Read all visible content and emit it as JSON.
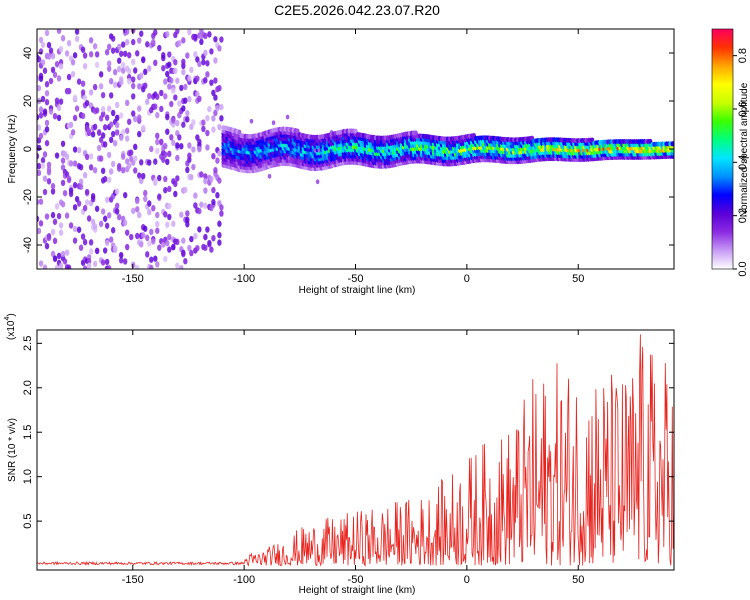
{
  "title": "C2E5.2026.042.23.07.R20",
  "chart_data": [
    {
      "type": "heatmap",
      "title": "C2E5.2026.042.23.07.R20",
      "xlabel": "Height of straight line (km)",
      "ylabel": "Frequency (Hz)",
      "xlim": [
        -193,
        93
      ],
      "ylim": [
        -50,
        50
      ],
      "xticks": [
        -150,
        -100,
        -50,
        0,
        50
      ],
      "xtick_labels": [
        "-150",
        "-100",
        "-50",
        "0",
        "50"
      ],
      "yticks": [
        -40,
        -20,
        0,
        20,
        40
      ],
      "ytick_labels": [
        "-40",
        "-20",
        "0",
        "20",
        "40"
      ],
      "colorbar": {
        "label": "Normalized spectral amplitude",
        "range": [
          0.0,
          0.9
        ],
        "ticks": [
          0.0,
          0.2,
          0.4,
          0.6,
          0.8
        ],
        "tick_labels": [
          "0.0",
          "0.2",
          "0.4",
          "0.6",
          "0.8"
        ],
        "colormap": [
          "#ffffff",
          "#c79bf5",
          "#8b2be2",
          "#5a00d8",
          "#0000ff",
          "#0090ff",
          "#00e5ff",
          "#00ff80",
          "#39ff00",
          "#c8ff00",
          "#ffff00",
          "#ffa500",
          "#ff3000",
          "#ff0060"
        ]
      },
      "description_regions": {
        "noise_x_range": [
          -193,
          -110
        ],
        "noise_amplitude_typical": 0.1,
        "signal_band_center_hz": 0,
        "signal_band_halfwidth_hz": [
          8,
          3
        ],
        "signal_amplitude_start": 0.35,
        "signal_amplitude_end": 0.8
      },
      "grid": false
    },
    {
      "type": "line",
      "xlabel": "Height of straight line (km)",
      "ylabel": "SNR (10 * v/v)",
      "y_multiplier_label": "(x10",
      "y_multiplier_exp": "4",
      "y_multiplier_close": ")",
      "xlim": [
        -193,
        93
      ],
      "ylim": [
        -0.05,
        2.65
      ],
      "xticks": [
        -150,
        -100,
        -50,
        0,
        50
      ],
      "xtick_labels": [
        "-150",
        "-100",
        "-50",
        "0",
        "50"
      ],
      "yticks": [
        0.5,
        1.0,
        1.5,
        2.0,
        2.5
      ],
      "ytick_labels": [
        "0.5",
        "1.0",
        "1.5",
        "2.0",
        "2.5"
      ],
      "series": [
        {
          "color": "#e8231e",
          "envelope_x": [
            -193,
            -110,
            -100,
            -90,
            -80,
            -70,
            -60,
            -50,
            -40,
            -30,
            -20,
            -10,
            0,
            10,
            20,
            30,
            40,
            50,
            60,
            70,
            80,
            90,
            93
          ],
          "envelope_max": [
            0.03,
            0.03,
            0.12,
            0.2,
            0.35,
            0.5,
            0.55,
            0.62,
            0.68,
            0.75,
            0.8,
            1.0,
            1.25,
            1.45,
            1.6,
            2.15,
            2.3,
            2.3,
            2.25,
            2.2,
            2.55,
            2.35,
            2.15
          ],
          "peak_value": 2.6,
          "peak_x": 78
        }
      ],
      "grid": false
    }
  ]
}
